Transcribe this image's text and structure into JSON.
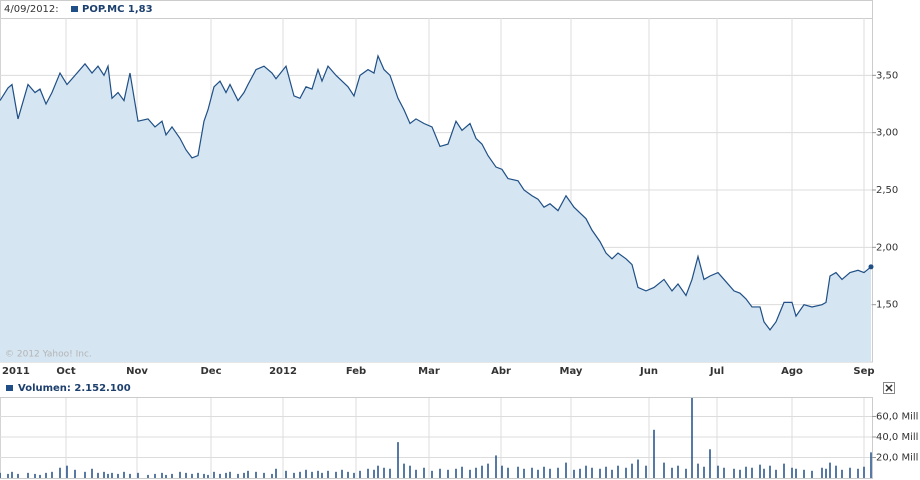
{
  "chart_data": [
    {
      "type": "area",
      "date_label": "4/09/2012:",
      "credit": "© 2012 Yahoo! Inc.",
      "x": [
        0,
        4,
        6,
        9,
        14,
        17.5,
        20,
        23,
        26,
        30,
        33.5,
        37.5,
        42.5,
        46,
        49,
        52,
        54,
        56,
        59,
        62,
        65,
        69,
        74,
        77.5,
        81,
        83,
        86,
        90,
        93,
        96,
        99,
        102,
        104,
        107,
        110,
        113,
        115,
        119,
        122,
        124,
        128,
        132,
        136,
        138,
        143,
        147,
        150,
        153,
        156,
        159,
        161,
        164,
        168,
        171,
        174,
        177,
        180,
        184,
        187,
        189,
        192,
        195,
        199,
        202,
        205,
        208,
        212,
        216,
        220,
        224,
        228,
        231,
        235,
        238,
        241,
        244,
        248,
        251,
        254,
        259,
        262,
        266,
        269,
        272,
        275,
        279,
        283,
        287,
        290,
        293,
        296,
        300,
        303,
        306,
        309,
        313,
        316,
        319,
        323,
        327,
        332,
        336,
        339,
        343,
        346,
        349,
        352,
        355,
        359,
        362,
        367,
        370,
        373,
        376,
        380,
        382,
        385,
        388,
        392,
        396,
        398,
        402,
        406,
        411,
        413,
        415,
        418,
        421,
        425,
        429,
        432,
        435.5
      ],
      "series": [
        {
          "name": "POP.MC 1,83",
          "color": "#1f4f86",
          "fill": "#d5e5f1",
          "values": [
            3.28,
            3.39,
            3.42,
            3.12,
            3.42,
            3.35,
            3.38,
            3.25,
            3.35,
            3.52,
            3.42,
            3.5,
            3.6,
            3.52,
            3.58,
            3.5,
            3.58,
            3.3,
            3.35,
            3.28,
            3.52,
            3.1,
            3.12,
            3.05,
            3.1,
            2.98,
            3.05,
            2.95,
            2.85,
            2.78,
            2.8,
            3.1,
            3.2,
            3.4,
            3.45,
            3.35,
            3.42,
            3.28,
            3.35,
            3.42,
            3.55,
            3.58,
            3.52,
            3.47,
            3.58,
            3.32,
            3.3,
            3.4,
            3.38,
            3.55,
            3.45,
            3.58,
            3.5,
            3.45,
            3.4,
            3.32,
            3.5,
            3.55,
            3.52,
            3.67,
            3.55,
            3.5,
            3.3,
            3.2,
            3.08,
            3.12,
            3.08,
            3.05,
            2.88,
            2.9,
            3.1,
            3.02,
            3.08,
            2.95,
            2.9,
            2.8,
            2.7,
            2.68,
            2.6,
            2.58,
            2.5,
            2.45,
            2.42,
            2.35,
            2.38,
            2.32,
            2.45,
            2.35,
            2.3,
            2.25,
            2.15,
            2.05,
            1.95,
            1.9,
            1.95,
            1.9,
            1.85,
            1.65,
            1.62,
            1.65,
            1.72,
            1.62,
            1.68,
            1.58,
            1.72,
            1.92,
            1.72,
            1.75,
            1.78,
            1.72,
            1.62,
            1.6,
            1.55,
            1.48,
            1.48,
            1.35,
            1.28,
            1.35,
            1.52,
            1.52,
            1.4,
            1.5,
            1.48,
            1.5,
            1.52,
            1.75,
            1.78,
            1.72,
            1.78,
            1.8,
            1.78,
            1.83
          ]
        }
      ],
      "xlim": [
        0,
        436
      ],
      "xticks": [
        {
          "value": 0,
          "label": "2011"
        },
        {
          "value": 33,
          "label": "Oct"
        },
        {
          "value": 68.5,
          "label": "Nov"
        },
        {
          "value": 105.5,
          "label": "Dec"
        },
        {
          "value": 141.5,
          "label": "2012"
        },
        {
          "value": 178,
          "label": "Feb"
        },
        {
          "value": 214.5,
          "label": "Mar"
        },
        {
          "value": 250.5,
          "label": "Abr"
        },
        {
          "value": 285.5,
          "label": "May"
        },
        {
          "value": 324.5,
          "label": "Jun"
        },
        {
          "value": 358.5,
          "label": "Jul"
        },
        {
          "value": 396,
          "label": "Ago"
        },
        {
          "value": 432,
          "label": "Sep"
        }
      ],
      "ylim": [
        1,
        4
      ],
      "yticks": [
        {
          "value": 1.5,
          "label": "1,50"
        },
        {
          "value": 2,
          "label": "2,00"
        },
        {
          "value": 2.5,
          "label": "2,50"
        },
        {
          "value": 3,
          "label": "3,00"
        },
        {
          "value": 3.5,
          "label": "3,50"
        }
      ],
      "grid": true
    },
    {
      "type": "bar",
      "x": [
        0,
        4,
        6,
        9,
        14,
        17.5,
        20,
        23,
        26,
        30,
        33.5,
        37.5,
        42.5,
        46,
        49,
        52,
        54,
        56,
        59,
        62,
        65,
        69,
        74,
        77.5,
        81,
        83,
        86,
        90,
        93,
        96,
        99,
        102,
        104,
        107,
        110,
        113,
        115,
        119,
        122,
        124,
        128,
        132,
        136,
        138,
        143,
        147,
        150,
        153,
        156,
        159,
        161,
        164,
        168,
        171,
        174,
        177,
        180,
        184,
        187,
        189,
        192,
        195,
        199,
        202,
        205,
        208,
        212,
        216,
        220,
        224,
        228,
        231,
        235,
        238,
        241,
        244,
        248,
        251,
        254,
        259,
        262,
        266,
        269,
        272,
        275,
        279,
        283,
        287,
        290,
        293,
        296,
        300,
        303,
        306,
        309,
        313,
        316,
        319,
        323,
        327,
        332,
        336,
        339,
        343,
        346,
        349,
        352,
        355,
        359,
        362,
        367,
        370,
        373,
        376,
        380,
        382,
        385,
        388,
        392,
        396,
        398,
        402,
        406,
        411,
        413,
        415,
        418,
        421,
        425,
        429,
        432,
        435.5
      ],
      "series": [
        {
          "name": "Volumen: 2.152.100",
          "color": "#1f4f86",
          "values": [
            5,
            4,
            6,
            4,
            5,
            4,
            3,
            5,
            6,
            10,
            12,
            8,
            6,
            9,
            5,
            6,
            4,
            5,
            4,
            6,
            4,
            5,
            3,
            4,
            5,
            3,
            4,
            6,
            5,
            4,
            5,
            4,
            3,
            6,
            4,
            5,
            6,
            4,
            5,
            7,
            6,
            5,
            4,
            9,
            7,
            5,
            6,
            8,
            6,
            7,
            5,
            7,
            6,
            8,
            6,
            5,
            7,
            9,
            8,
            12,
            10,
            9,
            35,
            14,
            12,
            8,
            10,
            7,
            9,
            8,
            9,
            11,
            8,
            10,
            12,
            14,
            22,
            12,
            10,
            11,
            9,
            10,
            8,
            11,
            9,
            10,
            15,
            8,
            9,
            12,
            10,
            9,
            11,
            8,
            12,
            10,
            14,
            18,
            12,
            47,
            15,
            10,
            12,
            9,
            78,
            14,
            11,
            28,
            12,
            10,
            9,
            8,
            11,
            10,
            13,
            9,
            12,
            8,
            14,
            10,
            9,
            8,
            7,
            10,
            9,
            15,
            12,
            8,
            10,
            9,
            11,
            25
          ]
        }
      ],
      "xlim": [
        0,
        436
      ],
      "ylim": [
        0,
        78
      ],
      "yticks": [
        {
          "value": 20,
          "label": "20,0 Mill"
        },
        {
          "value": 40,
          "label": "40,0 Mill"
        },
        {
          "value": 60,
          "label": "60,0 Mill"
        }
      ],
      "grid": true
    }
  ]
}
